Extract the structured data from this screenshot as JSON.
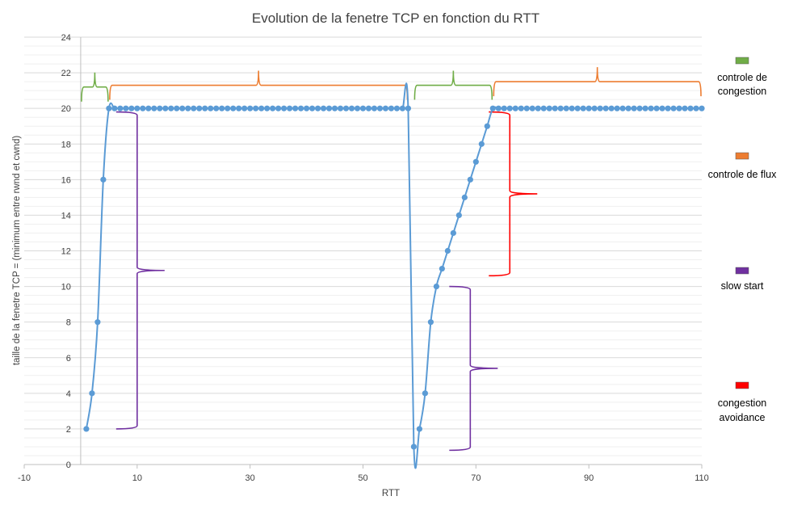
{
  "chart_data": {
    "type": "line",
    "title": "Evolution de la fenetre TCP en fonction  du RTT",
    "xlabel": "RTT",
    "ylabel": "taille de la fenetre TCP = (minimum entre rwnd et cwnd)",
    "xlim": [
      -10,
      110
    ],
    "ylim": [
      0,
      24
    ],
    "xticks": [
      -10,
      10,
      30,
      50,
      70,
      90,
      110
    ],
    "yticks": [
      0,
      2,
      4,
      6,
      8,
      10,
      12,
      14,
      16,
      18,
      20,
      22,
      24
    ],
    "grid": "horizontal",
    "series": [
      {
        "name": "fenetre TCP",
        "color": "#5B9BD5",
        "x": [
          1,
          2,
          3,
          4,
          5,
          6,
          7,
          8,
          9,
          10,
          11,
          12,
          13,
          14,
          15,
          16,
          17,
          18,
          19,
          20,
          21,
          22,
          23,
          24,
          25,
          26,
          27,
          28,
          29,
          30,
          31,
          32,
          33,
          34,
          35,
          36,
          37,
          38,
          39,
          40,
          41,
          42,
          43,
          44,
          45,
          46,
          47,
          48,
          49,
          50,
          51,
          52,
          53,
          54,
          55,
          56,
          57,
          58,
          59,
          60,
          61,
          62,
          63,
          64,
          65,
          66,
          67,
          68,
          69,
          70,
          71,
          72,
          73,
          74,
          75,
          76,
          77,
          78,
          79,
          80,
          81,
          82,
          83,
          84,
          85,
          86,
          87,
          88,
          89,
          90,
          91,
          92,
          93,
          94,
          95,
          96,
          97,
          98,
          99,
          100,
          101,
          102,
          103,
          104,
          105,
          106,
          107,
          108,
          109,
          110
        ],
        "y": [
          2,
          4,
          8,
          16,
          20,
          20,
          20,
          20,
          20,
          20,
          20,
          20,
          20,
          20,
          20,
          20,
          20,
          20,
          20,
          20,
          20,
          20,
          20,
          20,
          20,
          20,
          20,
          20,
          20,
          20,
          20,
          20,
          20,
          20,
          20,
          20,
          20,
          20,
          20,
          20,
          20,
          20,
          20,
          20,
          20,
          20,
          20,
          20,
          20,
          20,
          20,
          20,
          20,
          20,
          20,
          20,
          20,
          20,
          1,
          2,
          4,
          8,
          10,
          11,
          12,
          13,
          14,
          15,
          16,
          17,
          18,
          19,
          20,
          20,
          20,
          20,
          20,
          20,
          20,
          20,
          20,
          20,
          20,
          20,
          20,
          20,
          20,
          20,
          20,
          20,
          20,
          20,
          20,
          20,
          20,
          20,
          20,
          20,
          20,
          20,
          20,
          20,
          20,
          20,
          20,
          20,
          20,
          20,
          20,
          20
        ]
      }
    ],
    "legend": [
      {
        "label": "controle de congestion",
        "color": "#70AD47"
      },
      {
        "label": "controle de flux",
        "color": "#ED7D31"
      },
      {
        "label": "slow start",
        "color": "#7030A0"
      },
      {
        "label": "congestion avoidance",
        "color": "#FF0000"
      }
    ],
    "annotations": [
      {
        "type": "horizontal-brace",
        "legend": "controle de congestion",
        "x_from": 0,
        "x_to": 5,
        "y": 21.2
      },
      {
        "type": "horizontal-brace",
        "legend": "controle de flux",
        "x_from": 5,
        "x_to": 58,
        "y": 21.3
      },
      {
        "type": "horizontal-brace",
        "legend": "controle de congestion",
        "x_from": 59,
        "x_to": 73,
        "y": 21.3
      },
      {
        "type": "horizontal-brace",
        "legend": "controle de flux",
        "x_from": 73,
        "x_to": 110,
        "y": 21.5
      },
      {
        "type": "vertical-brace",
        "legend": "slow start",
        "y_from": 2,
        "y_to": 19.8,
        "x": 10
      },
      {
        "type": "vertical-brace",
        "legend": "slow start",
        "y_from": 0.8,
        "y_to": 10,
        "x": 69
      },
      {
        "type": "vertical-brace",
        "legend": "congestion avoidance",
        "y_from": 10.6,
        "y_to": 19.8,
        "x": 76
      }
    ]
  }
}
